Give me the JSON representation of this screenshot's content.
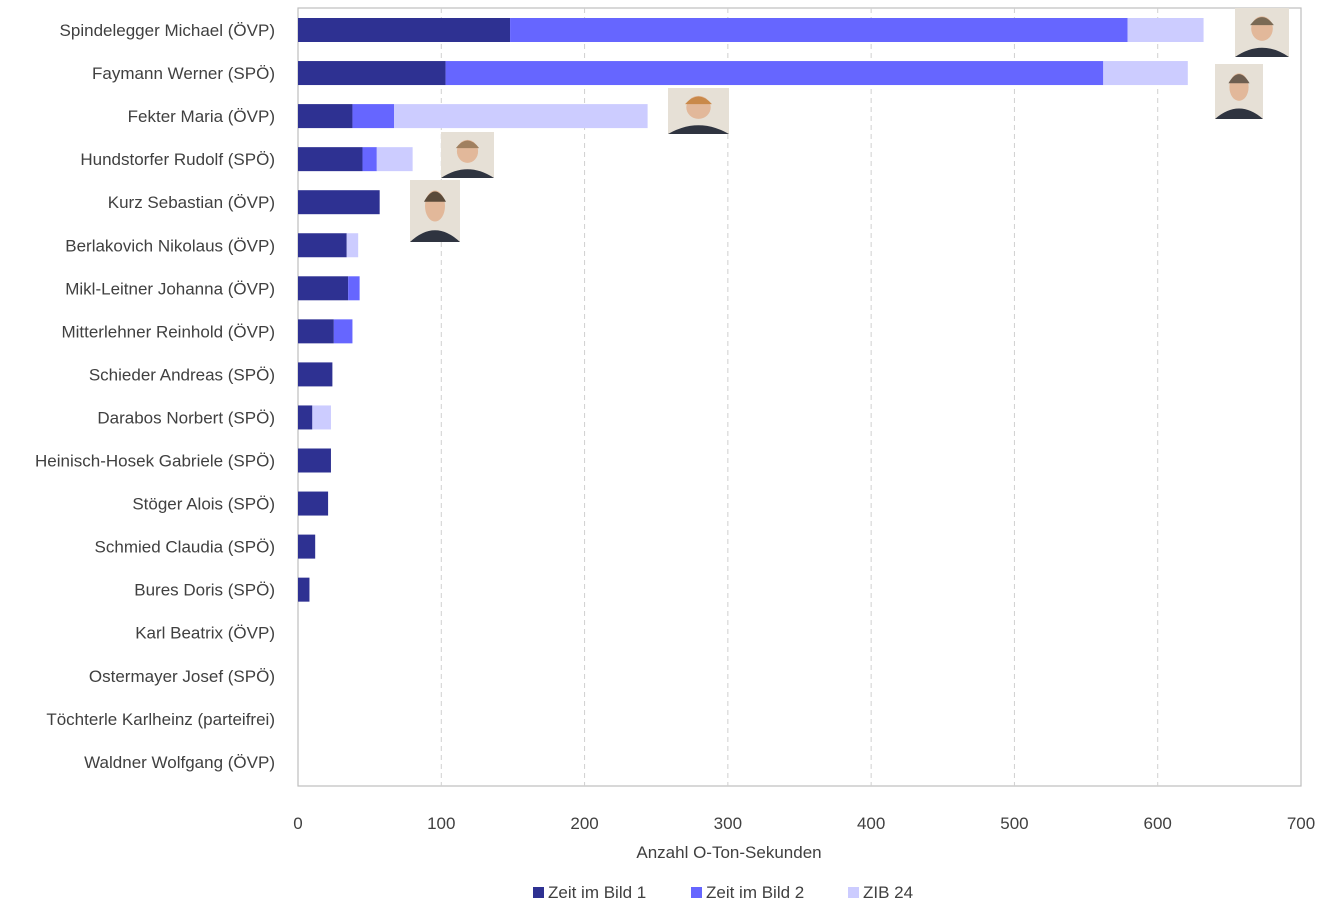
{
  "chart_data": {
    "type": "bar",
    "orientation": "horizontal",
    "stacked": true,
    "categories": [
      "Spindelegger Michael (ÖVP)",
      "Faymann Werner (SPÖ)",
      "Fekter Maria (ÖVP)",
      "Hundstorfer Rudolf (SPÖ)",
      "Kurz Sebastian (ÖVP)",
      "Berlakovich Nikolaus (ÖVP)",
      "Mikl-Leitner Johanna (ÖVP)",
      "Mitterlehner Reinhold (ÖVP)",
      "Schieder Andreas (SPÖ)",
      "Darabos Norbert (SPÖ)",
      "Heinisch-Hosek Gabriele (SPÖ)",
      "Stöger Alois (SPÖ)",
      "Schmied Claudia (SPÖ)",
      "Bures Doris (SPÖ)",
      "Karl Beatrix (ÖVP)",
      "Ostermayer Josef (SPÖ)",
      "Töchterle Karlheinz (parteifrei)",
      "Waldner Wolfgang (ÖVP)"
    ],
    "series": [
      {
        "name": "Zeit im Bild 1",
        "color": "#2e3192",
        "values": [
          148,
          103,
          38,
          45,
          57,
          34,
          35,
          25,
          24,
          10,
          23,
          21,
          12,
          8,
          0,
          0,
          0,
          0
        ]
      },
      {
        "name": "Zeit im Bild 2",
        "color": "#6666ff",
        "values": [
          431,
          459,
          29,
          10,
          0,
          0,
          8,
          13,
          0,
          0,
          0,
          0,
          0,
          0,
          0,
          0,
          0,
          0
        ]
      },
      {
        "name": "ZIB 24",
        "color": "#ccccff",
        "values": [
          53,
          59,
          177,
          25,
          0,
          8,
          0,
          0,
          0,
          13,
          0,
          0,
          0,
          0,
          0,
          0,
          0,
          0
        ]
      }
    ],
    "xlabel": "Anzahl O-Ton-Sekunden",
    "xlim": [
      0,
      700
    ],
    "xticks": [
      "0",
      "100",
      "200",
      "300",
      "400",
      "500",
      "600",
      "700"
    ],
    "grid": "vertical-dashed",
    "legend_position": "bottom",
    "photos": [
      {
        "category_index": 0,
        "icon": "portrait-photo-icon",
        "tone": "#7a6a55"
      },
      {
        "category_index": 1,
        "icon": "portrait-photo-icon",
        "tone": "#6e5e50"
      },
      {
        "category_index": 2,
        "icon": "portrait-photo-icon",
        "tone": "#c9894a"
      },
      {
        "category_index": 3,
        "icon": "portrait-photo-icon",
        "tone": "#a08060"
      },
      {
        "category_index": 4,
        "icon": "portrait-photo-icon",
        "tone": "#5a4a3a"
      }
    ]
  }
}
